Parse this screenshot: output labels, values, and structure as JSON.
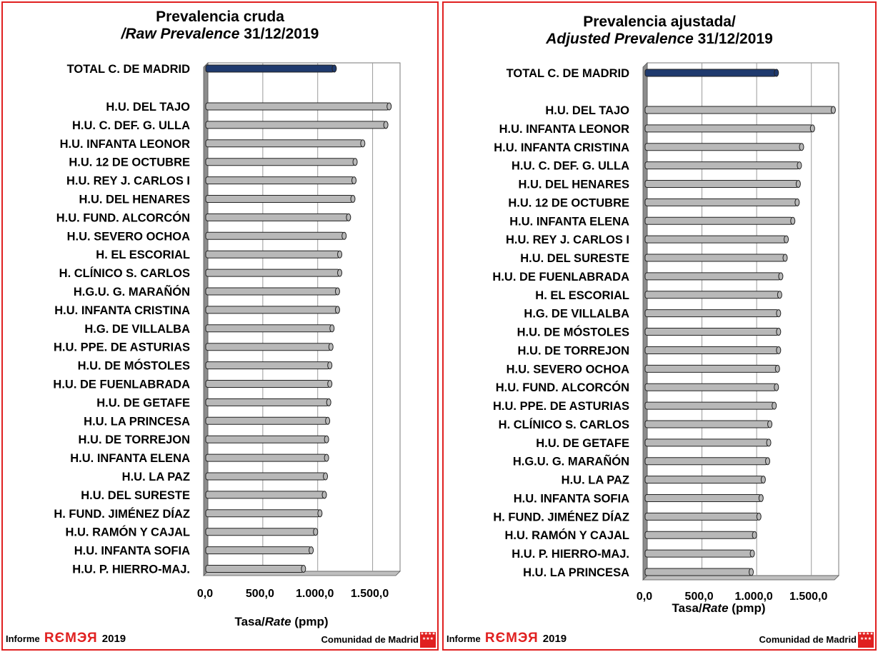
{
  "footer": {
    "informe": "Informe",
    "remer": "RЄMЭЯ",
    "year": "2019",
    "comunidad": "Comunidad de Madrid",
    "flag_stars": "★★★★ ★★★"
  },
  "colors": {
    "total_bar": "#1f3a6e",
    "bar": "#b8b8b8",
    "border": "#e02020",
    "grid": "#9a9a9a"
  },
  "chart_data": [
    {
      "type": "bar",
      "orientation": "horizontal",
      "title_line1": "Prevalencia cruda",
      "title_line2_italic": "/Raw Prevalence",
      "title_line2_bold": " 31/12/2019",
      "xlabel_plain": "Tasa/",
      "xlabel_italic": "Rate",
      "xlabel_unit": " (pmp)",
      "xlim": [
        0,
        1750
      ],
      "xticks": [
        "0,0",
        "500,0",
        "1.000,0",
        "1.500,0"
      ],
      "tick_values": [
        0,
        500,
        1000,
        1500
      ],
      "total": {
        "category": "TOTAL C. DE MADRID",
        "value": 1170
      },
      "categories": [
        "H.U. DEL TAJO",
        "H.U. C. DEF. G. ULLA",
        "H.U. INFANTA LEONOR",
        "H.U. 12 DE OCTUBRE",
        "H.U. REY J. CARLOS I",
        "H.U. DEL HENARES",
        "H.U. FUND. ALCORCÓN",
        "H.U. SEVERO OCHOA",
        "H. EL ESCORIAL",
        "H. CLÍNICO S. CARLOS",
        "H.G.U. G. MARAÑÓN",
        "H.U. INFANTA CRISTINA",
        "H.G. DE VILLALBA",
        "H.U. PPE. DE ASTURIAS",
        "H.U. DE MÓSTOLES",
        "H.U. DE FUENLABRADA",
        "H.U. DE GETAFE",
        "H.U. LA PRINCESA",
        "H.U. DE TORREJON",
        "H.U. INFANTA ELENA",
        "H.U. LA PAZ",
        "H.U. DEL SURESTE",
        "H. FUND. JIMÉNEZ DÍAZ",
        "H.U. RAMÓN Y CAJAL",
        "H.U. INFANTA SOFIA",
        "H.U. P. HIERRO-MAJ."
      ],
      "values": [
        1670,
        1640,
        1430,
        1360,
        1350,
        1340,
        1300,
        1260,
        1220,
        1220,
        1200,
        1200,
        1150,
        1140,
        1130,
        1130,
        1120,
        1110,
        1100,
        1100,
        1090,
        1080,
        1040,
        1000,
        960,
        890
      ]
    },
    {
      "type": "bar",
      "orientation": "horizontal",
      "title_line1": "Prevalencia ajustada/",
      "title_line2_italic": "Adjusted Prevalence",
      "title_line2_bold": " 31/12/2019",
      "xlabel_plain": "Tasa/",
      "xlabel_italic": "Rate",
      "xlabel_unit": " (pmp)",
      "xlim": [
        0,
        1750
      ],
      "xticks": [
        "0,0",
        "500,0",
        "1.000,0",
        "1.500,0"
      ],
      "tick_values": [
        0,
        500,
        1000,
        1500
      ],
      "total": {
        "category": "TOTAL C. DE MADRID",
        "value": 1200
      },
      "categories": [
        "H.U. DEL TAJO",
        "H.U. INFANTA LEONOR",
        "H.U. INFANTA CRISTINA",
        "H.U. C. DEF. G. ULLA",
        "H.U. DEL HENARES",
        "H.U. 12 DE OCTUBRE",
        "H.U. INFANTA ELENA",
        "H.U. REY J. CARLOS I",
        "H.U. DEL SURESTE",
        "H.U. DE FUENLABRADA",
        "H. EL ESCORIAL",
        "H.G. DE VILLALBA",
        "H.U. DE MÓSTOLES",
        "H.U. DE TORREJON",
        "H.U. SEVERO OCHOA",
        "H.U. FUND. ALCORCÓN",
        "H.U. PPE. DE ASTURIAS",
        "H. CLÍNICO S. CARLOS",
        "H.U. DE GETAFE",
        "H.G.U. G. MARAÑÓN",
        "H.U. LA PAZ",
        "H.U. INFANTA SOFIA",
        "H. FUND. JIMÉNEZ DÍAZ",
        "H.U. RAMÓN Y CAJAL",
        "H.U. P. HIERRO-MAJ.",
        "H.U. LA PRINCESA"
      ],
      "values": [
        1720,
        1530,
        1430,
        1410,
        1400,
        1390,
        1350,
        1290,
        1280,
        1240,
        1230,
        1220,
        1220,
        1220,
        1210,
        1200,
        1180,
        1140,
        1130,
        1120,
        1080,
        1060,
        1040,
        1000,
        980,
        970
      ]
    }
  ]
}
